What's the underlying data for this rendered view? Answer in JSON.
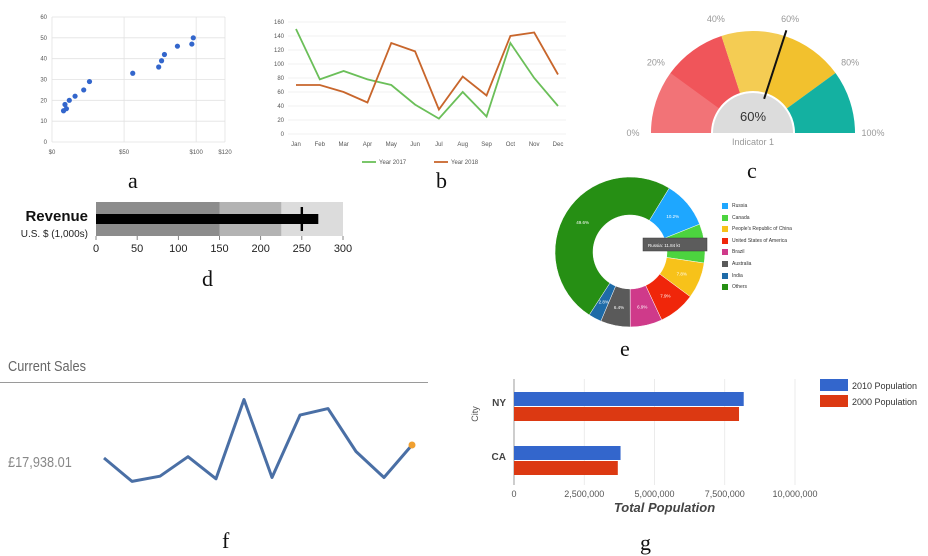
{
  "captions": [
    "a",
    "b",
    "c",
    "d",
    "e",
    "f",
    "g"
  ],
  "chart_data": [
    {
      "id": "a",
      "type": "scatter",
      "x_ticks": [
        "$0",
        "$50",
        "$100",
        "$120"
      ],
      "y_ticks": [
        "0",
        "10",
        "20",
        "30",
        "40",
        "50",
        "60"
      ],
      "xlim": [
        0,
        120
      ],
      "ylim": [
        0,
        60
      ],
      "points": [
        [
          8,
          15
        ],
        [
          9,
          18
        ],
        [
          10,
          16
        ],
        [
          12,
          20
        ],
        [
          16,
          22
        ],
        [
          22,
          25
        ],
        [
          26,
          29
        ],
        [
          56,
          33
        ],
        [
          74,
          36
        ],
        [
          76,
          39
        ],
        [
          78,
          42
        ],
        [
          87,
          46
        ],
        [
          97,
          47
        ],
        [
          98,
          50
        ]
      ],
      "color": "#3366cc"
    },
    {
      "id": "b",
      "type": "line",
      "categories": [
        "Jan",
        "Feb",
        "Mar",
        "Apr",
        "May",
        "Jun",
        "Jul",
        "Aug",
        "Sep",
        "Oct",
        "Nov",
        "Dec"
      ],
      "y_ticks": [
        "0",
        "20",
        "40",
        "60",
        "80",
        "100",
        "120",
        "140",
        "160"
      ],
      "ylim": [
        0,
        160
      ],
      "series": [
        {
          "name": "Year 2017",
          "color": "#6bbf59",
          "values": [
            150,
            78,
            90,
            78,
            70,
            42,
            22,
            60,
            25,
            130,
            80,
            40
          ]
        },
        {
          "name": "Year 2018",
          "color": "#c8662c",
          "values": [
            70,
            70,
            60,
            45,
            130,
            118,
            35,
            82,
            55,
            140,
            145,
            85
          ]
        }
      ]
    },
    {
      "id": "c",
      "type": "gauge",
      "value": 60,
      "value_label": "60%",
      "name": "Indicator 1",
      "tick_labels": [
        "0%",
        "20%",
        "40%",
        "60%",
        "80%",
        "100%"
      ],
      "bands": [
        {
          "from": 0,
          "to": 40,
          "color": "#f0555a"
        },
        {
          "from": 40,
          "to": 80,
          "color": "#f2c12e"
        },
        {
          "from": 80,
          "to": 100,
          "color": "#14b1a1"
        }
      ]
    },
    {
      "id": "d",
      "type": "bullet",
      "title": "Revenue",
      "subtitle": "U.S. $ (1,000s)",
      "ticks": [
        "0",
        "50",
        "100",
        "150",
        "200",
        "250",
        "300"
      ],
      "xlim": [
        0,
        300
      ],
      "ranges": [
        {
          "to": 150,
          "color": "#8c8c8c"
        },
        {
          "to": 225,
          "color": "#b3b3b3"
        },
        {
          "to": 300,
          "color": "#dcdcdc"
        }
      ],
      "measure": 270,
      "target": 250
    },
    {
      "id": "e",
      "type": "pie",
      "donut": true,
      "legend_position": "right",
      "tooltip": "Russia: 11.84 kt",
      "slices": [
        {
          "name": "Russia",
          "value": 10.2,
          "label": "10.2%",
          "color": "#1ea7ff"
        },
        {
          "name": "Canada",
          "value": 8.4,
          "label": "8.4%",
          "color": "#4cd43f"
        },
        {
          "name": "People's Republic of China",
          "value": 7.8,
          "label": "7.8%",
          "color": "#f7c21a"
        },
        {
          "name": "United States of America",
          "value": 7.9,
          "label": "7.9%",
          "color": "#f0260a"
        },
        {
          "name": "Brazil",
          "value": 6.9,
          "label": "6.9%",
          "color": "#cf3a8a"
        },
        {
          "name": "Australia",
          "value": 6.4,
          "label": "6.4%",
          "color": "#5a5a5a"
        },
        {
          "name": "India",
          "value": 2.8,
          "label": "2.8%",
          "color": "#1e6ba8"
        },
        {
          "name": "Others",
          "value": 49.6,
          "label": "49.6%",
          "color": "#268f14"
        }
      ]
    },
    {
      "id": "f",
      "type": "line",
      "title": "Current Sales",
      "value_label": "£17,938.01",
      "color": "#4a6fa5",
      "end_marker_color": "#f0a030",
      "values": [
        40,
        22,
        26,
        41,
        24,
        85,
        25,
        73,
        78,
        45,
        25,
        50
      ]
    },
    {
      "id": "g",
      "type": "bar",
      "orientation": "horizontal",
      "categories": [
        "NY",
        "CA"
      ],
      "xlabel": "Total Population",
      "ylabel": "City",
      "xlim": [
        0,
        10000000
      ],
      "x_ticks": [
        "0",
        "2,500,000",
        "5,000,000",
        "7,500,000",
        "10,000,000"
      ],
      "series": [
        {
          "name": "2010 Population",
          "color": "#3366cc",
          "values": [
            8175000,
            3792000
          ]
        },
        {
          "name": "2000 Population",
          "color": "#dc3912",
          "values": [
            8008000,
            3694000
          ]
        }
      ]
    }
  ]
}
